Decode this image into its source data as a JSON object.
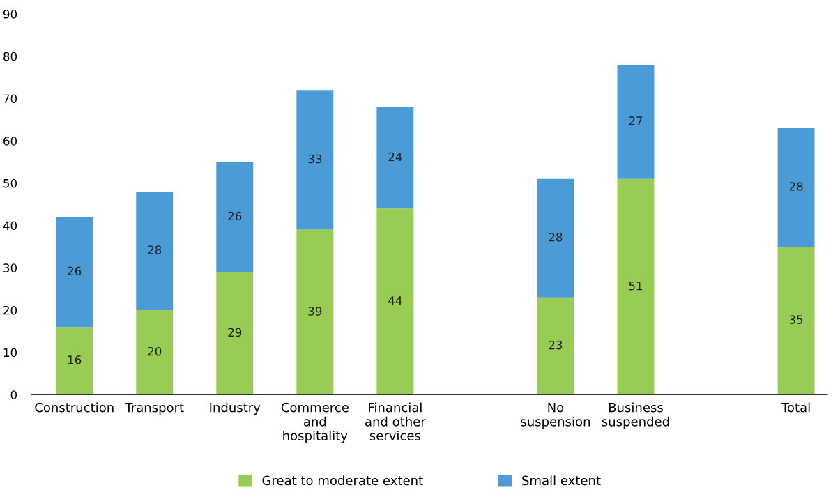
{
  "chart_data": {
    "type": "bar",
    "stacked": true,
    "categories": [
      "Construction",
      "Transport",
      "Industry",
      "Commerce\nand\nhospitality",
      "Financial\nand other\nservices",
      null,
      "No\nsuspension",
      "Business\nsuspended",
      null,
      "Total"
    ],
    "series": [
      {
        "name": "Great to moderate extent",
        "color": "#99cc55",
        "values": [
          16,
          20,
          29,
          39,
          44,
          null,
          23,
          51,
          null,
          35
        ]
      },
      {
        "name": "Small extent",
        "color": "#4a9bd6",
        "values": [
          26,
          28,
          26,
          33,
          24,
          null,
          28,
          27,
          null,
          28
        ]
      }
    ],
    "ylim": [
      0,
      90
    ],
    "yticks": [
      0,
      10,
      20,
      30,
      40,
      50,
      60,
      70,
      80,
      90
    ],
    "data_labels": true,
    "legend": "bottom",
    "grid": false
  }
}
